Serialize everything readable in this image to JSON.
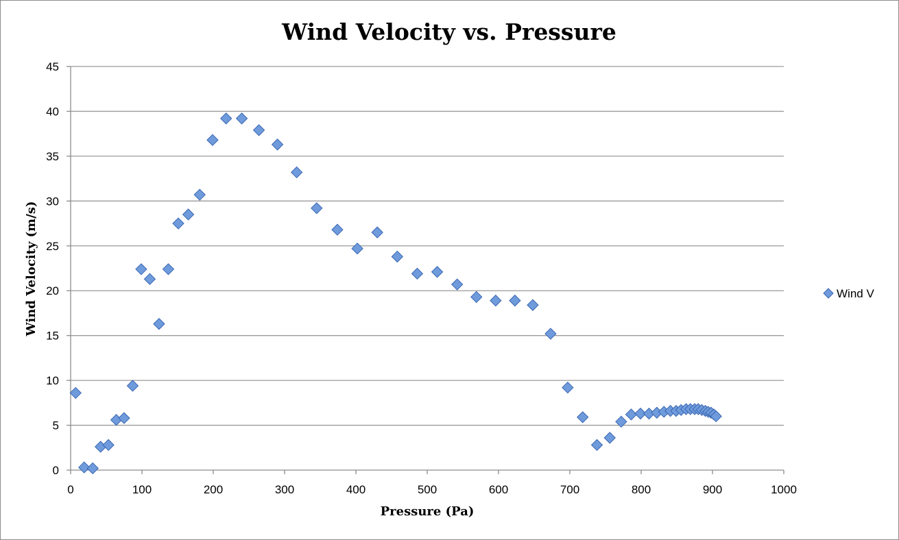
{
  "chart_data": {
    "type": "scatter",
    "title": "Wind Velocity vs. Pressure",
    "xlabel": "Pressure (Pa)",
    "ylabel": "Wind Velocity (m/s)",
    "xlim": [
      0,
      1000
    ],
    "ylim": [
      0,
      45
    ],
    "xticks": [
      0,
      100,
      200,
      300,
      400,
      500,
      600,
      700,
      800,
      900,
      1000
    ],
    "yticks": [
      0,
      5,
      10,
      15,
      20,
      25,
      30,
      35,
      40,
      45
    ],
    "grid": "horizontal",
    "legend_position": "right",
    "series": [
      {
        "name": "Wind V",
        "color": "#6f9bdc",
        "marker": "diamond",
        "points": [
          [
            7,
            8.6
          ],
          [
            19,
            0.3
          ],
          [
            31,
            0.2
          ],
          [
            42,
            2.6
          ],
          [
            53,
            2.8
          ],
          [
            64,
            5.6
          ],
          [
            75,
            5.8
          ],
          [
            87,
            9.4
          ],
          [
            99,
            22.4
          ],
          [
            111,
            21.3
          ],
          [
            124,
            16.3
          ],
          [
            137,
            22.4
          ],
          [
            151,
            27.5
          ],
          [
            165,
            28.5
          ],
          [
            181,
            30.7
          ],
          [
            199,
            36.8
          ],
          [
            218,
            39.2
          ],
          [
            240,
            39.2
          ],
          [
            264,
            37.9
          ],
          [
            290,
            36.3
          ],
          [
            317,
            33.2
          ],
          [
            345,
            29.2
          ],
          [
            374,
            26.8
          ],
          [
            402,
            24.7
          ],
          [
            430,
            26.5
          ],
          [
            458,
            23.8
          ],
          [
            486,
            21.9
          ],
          [
            514,
            22.1
          ],
          [
            542,
            20.7
          ],
          [
            569,
            19.3
          ],
          [
            596,
            18.9
          ],
          [
            623,
            18.9
          ],
          [
            648,
            18.4
          ],
          [
            673,
            15.2
          ],
          [
            697,
            9.2
          ],
          [
            718,
            5.9
          ],
          [
            738,
            2.8
          ],
          [
            756,
            3.6
          ],
          [
            772,
            5.4
          ],
          [
            786,
            6.2
          ],
          [
            799,
            6.3
          ],
          [
            811,
            6.3
          ],
          [
            822,
            6.4
          ],
          [
            832,
            6.5
          ],
          [
            841,
            6.6
          ],
          [
            849,
            6.6
          ],
          [
            856,
            6.7
          ],
          [
            863,
            6.8
          ],
          [
            869,
            6.8
          ],
          [
            875,
            6.8
          ],
          [
            880,
            6.8
          ],
          [
            885,
            6.7
          ],
          [
            890,
            6.6
          ],
          [
            894,
            6.5
          ],
          [
            898,
            6.4
          ],
          [
            902,
            6.2
          ],
          [
            905,
            6.0
          ]
        ]
      }
    ]
  }
}
